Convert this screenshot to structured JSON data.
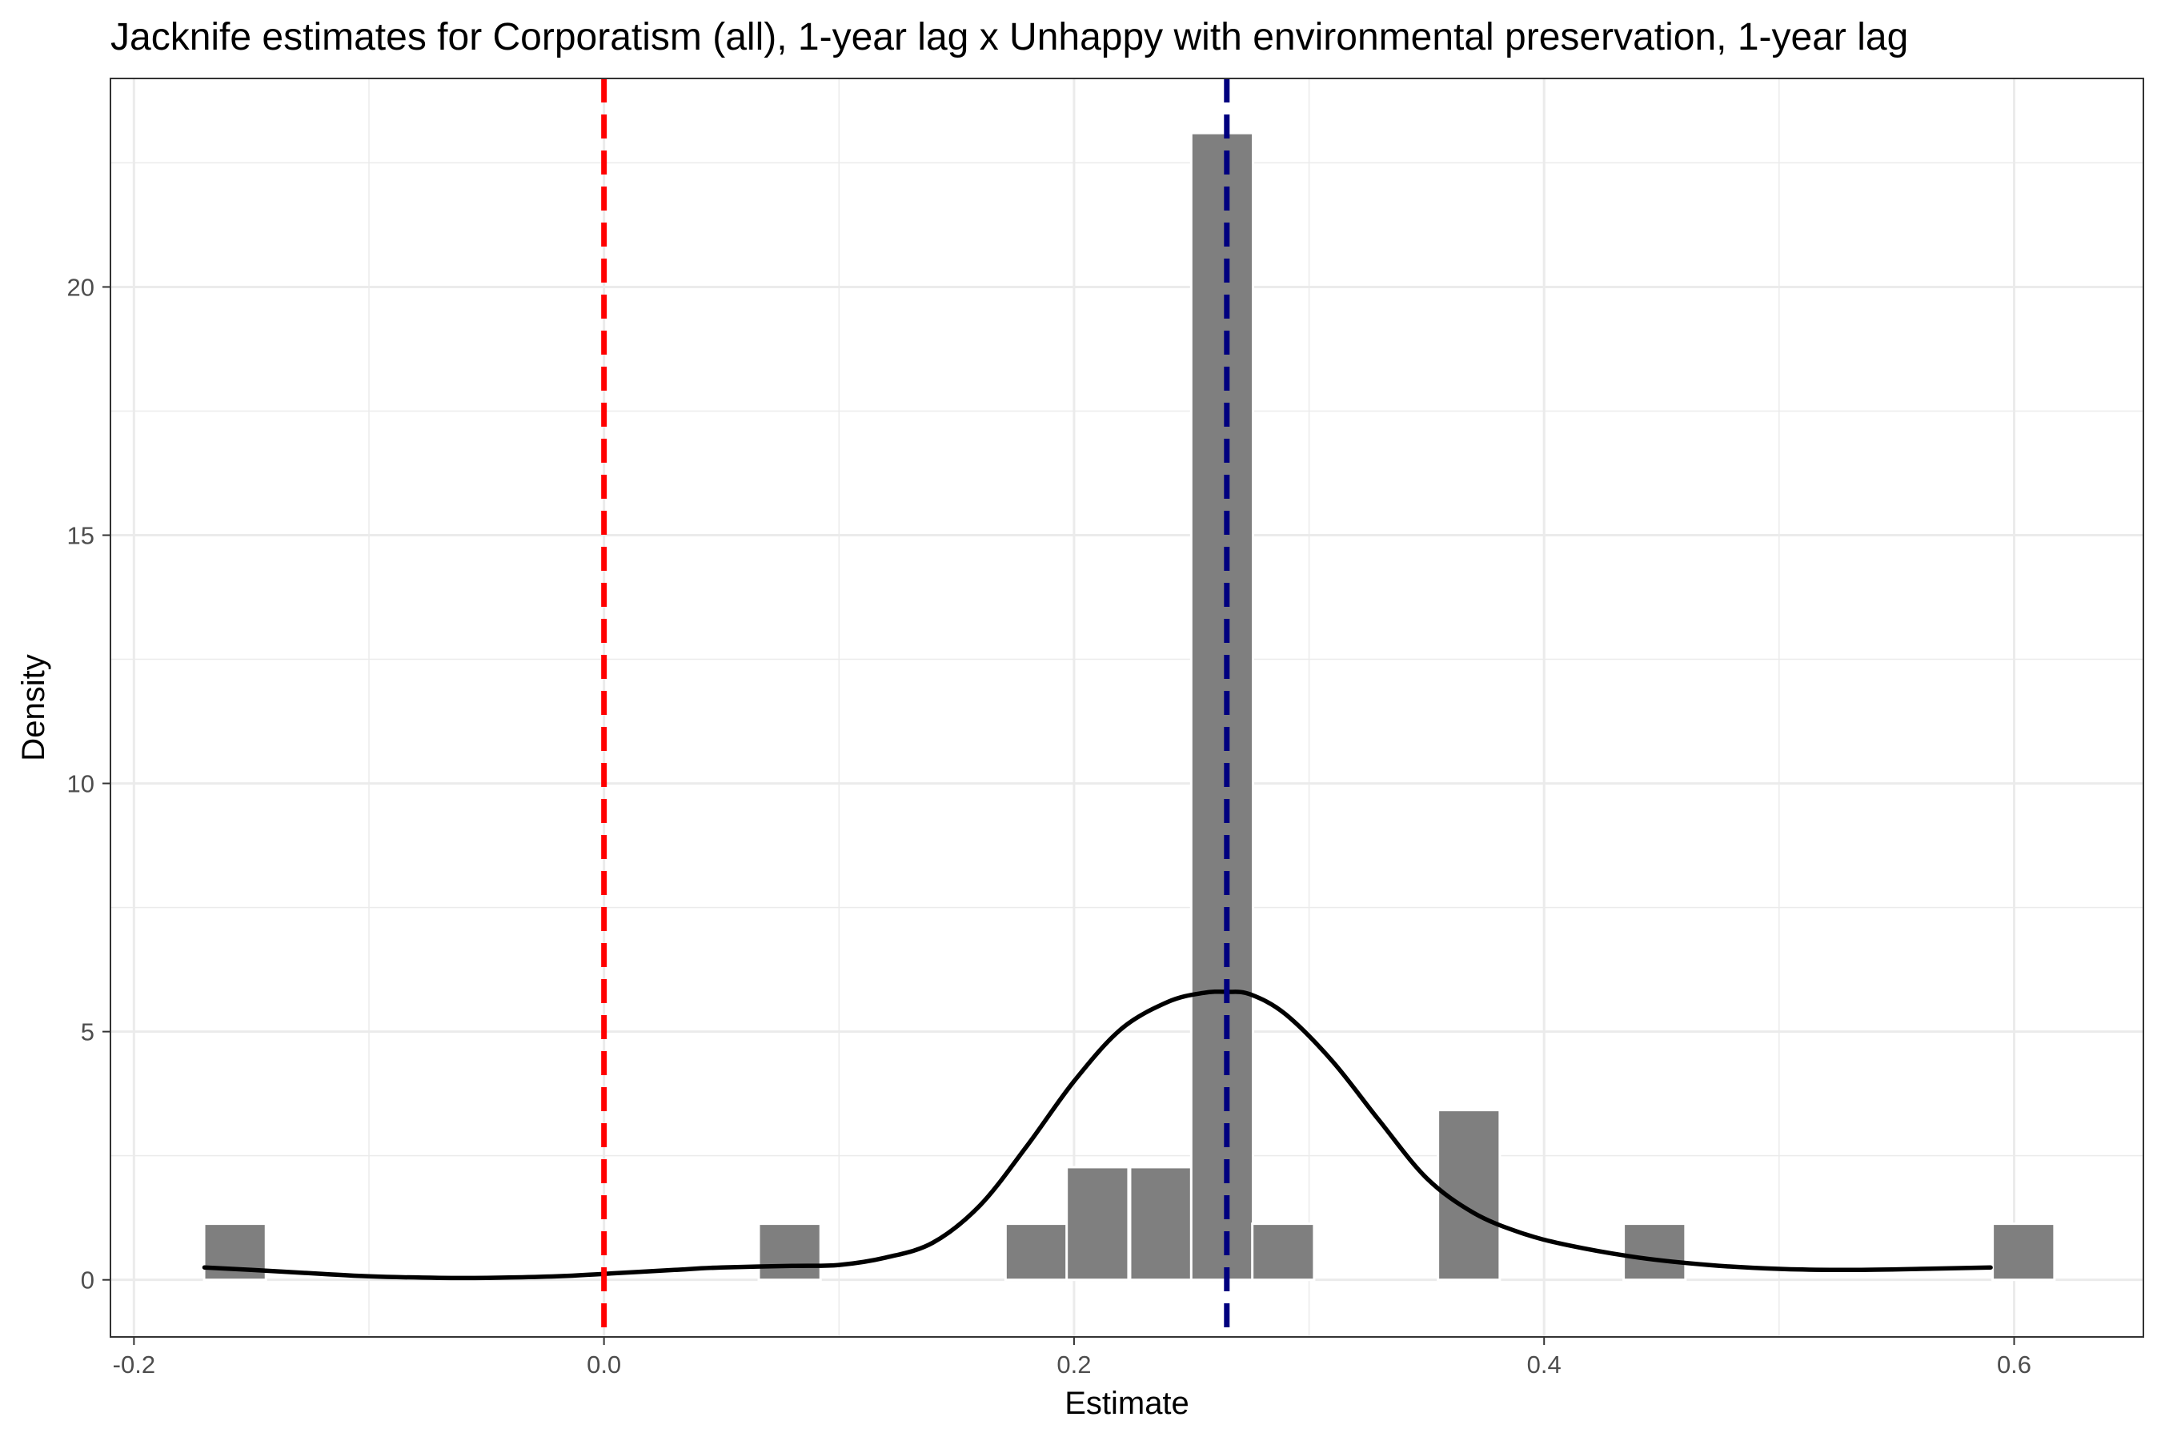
{
  "chart_data": {
    "type": "bar",
    "title": "Jacknife estimates for Corporatism (all), 1-year lag x Unhappy with environmental preservation, 1-year lag",
    "xlabel": "Estimate",
    "ylabel": "Density",
    "xlim": [
      -0.21,
      0.655
    ],
    "ylim": [
      -1.15,
      24.2
    ],
    "x_ticks": [
      -0.2,
      0.0,
      0.2,
      0.4,
      0.6
    ],
    "x_tick_labels": [
      "-0.2",
      "0.0",
      "0.2",
      "0.4",
      "0.6"
    ],
    "y_ticks": [
      0,
      5,
      10,
      15,
      20
    ],
    "y_tick_labels": [
      "0",
      "5",
      "10",
      "15",
      "20"
    ],
    "grid": true,
    "bin_width": 0.0263,
    "histogram": {
      "bin_centers": [
        -0.157,
        0.079,
        0.184,
        0.21,
        0.237,
        0.263,
        0.289,
        0.368,
        0.447,
        0.604
      ],
      "values": [
        1.13,
        1.13,
        1.13,
        2.27,
        2.27,
        23.1,
        1.13,
        3.42,
        1.13,
        1.13
      ],
      "color": "#7f7f7f"
    },
    "density_curve": {
      "color": "#000000",
      "x": [
        -0.17,
        -0.15,
        -0.12,
        -0.1,
        -0.07,
        -0.05,
        -0.02,
        0.0,
        0.03,
        0.05,
        0.08,
        0.1,
        0.12,
        0.14,
        0.16,
        0.18,
        0.2,
        0.22,
        0.24,
        0.255,
        0.265,
        0.275,
        0.29,
        0.31,
        0.33,
        0.35,
        0.37,
        0.39,
        0.41,
        0.44,
        0.47,
        0.5,
        0.53,
        0.56,
        0.59
      ],
      "y": [
        0.25,
        0.2,
        0.12,
        0.07,
        0.04,
        0.04,
        0.07,
        0.12,
        0.2,
        0.25,
        0.28,
        0.3,
        0.45,
        0.75,
        1.5,
        2.7,
        4.0,
        5.05,
        5.6,
        5.78,
        5.8,
        5.75,
        5.35,
        4.4,
        3.2,
        2.05,
        1.35,
        0.95,
        0.7,
        0.45,
        0.3,
        0.22,
        0.2,
        0.22,
        0.25
      ]
    },
    "reference_lines": [
      {
        "x": 0.0,
        "color": "#ff0000",
        "style": "dashed"
      },
      {
        "x": 0.265,
        "color": "#00007f",
        "style": "dashed"
      }
    ]
  }
}
